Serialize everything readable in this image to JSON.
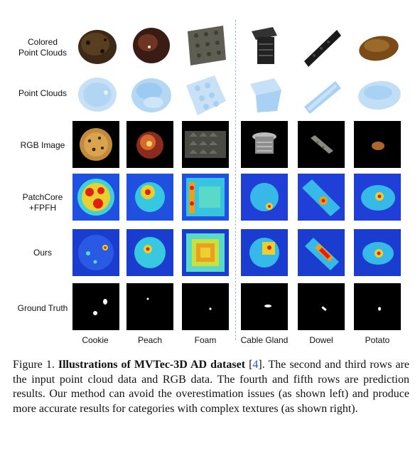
{
  "figure": {
    "row_labels": [
      "Colored\nPoint Clouds",
      "Point Clouds",
      "RGB Image",
      "PatchCore\n+FPFH",
      "Ours",
      "Ground Truth"
    ],
    "column_labels": [
      "Cookie",
      "Peach",
      "Foam",
      "Cable Gland",
      "Dowel",
      "Potato"
    ],
    "divider": "dashed vertical line between Foam and Cable Gland columns",
    "colors": {
      "heat_low": "#1f3fd6",
      "heat_mid": "#2ee0c0",
      "heat_high": "#e01010",
      "pointcloud": "#8ec3f0"
    }
  },
  "caption": {
    "prefix": "Figure 1. ",
    "title": "Illustrations of MVTec-3D AD dataset",
    "ref_open": " [",
    "ref": "4",
    "ref_close": "]. ",
    "body": "The second and third rows are the input point cloud data and RGB data. The fourth and fifth rows are prediction results. Our method can avoid the overestimation issues (as shown left) and produce more accurate results for categories with complex textures (as shown right)."
  }
}
